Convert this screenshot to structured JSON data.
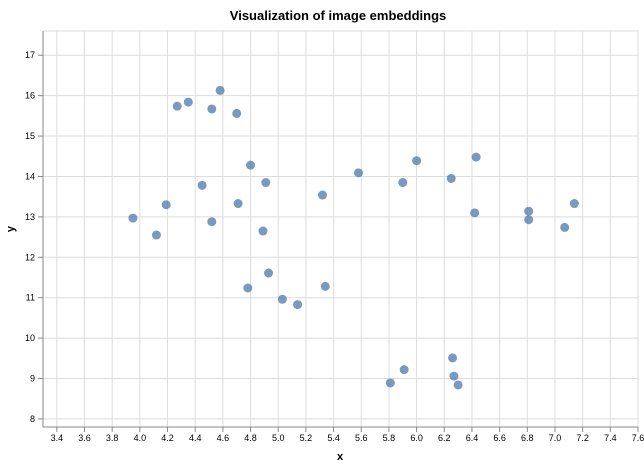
{
  "chart_data": {
    "type": "scatter",
    "title": "Visualization of image embeddings",
    "xlabel": "x",
    "ylabel": "y",
    "xlim": [
      3.3,
      7.6
    ],
    "ylim": [
      7.8,
      17.6
    ],
    "x_ticks": [
      3.4,
      3.6,
      3.8,
      4.0,
      4.2,
      4.4,
      4.6,
      4.8,
      5.0,
      5.2,
      5.4,
      5.6,
      5.8,
      6.0,
      6.2,
      6.4,
      6.6,
      6.8,
      7.0,
      7.2,
      7.4,
      7.6
    ],
    "x_tick_labels": [
      "3.4",
      "3.6",
      "3.8",
      "4.0",
      "4.2",
      "4.4",
      "4.6",
      "4.8",
      "5.0",
      "5.2",
      "5.4",
      "5.6",
      "5.8",
      "6.0",
      "6.2",
      "6.4",
      "6.6",
      "6.8",
      "7.0",
      "7.2",
      "7.4",
      "7.6"
    ],
    "y_ticks": [
      8,
      9,
      10,
      11,
      12,
      13,
      14,
      15,
      16,
      17
    ],
    "y_tick_labels": [
      "8",
      "9",
      "10",
      "11",
      "12",
      "13",
      "14",
      "15",
      "16",
      "17"
    ],
    "grid": true,
    "point_color": "#4c78a8",
    "grid_color": "#dddddd",
    "axis_color": "#888888",
    "points": [
      {
        "x": 3.95,
        "y": 12.97
      },
      {
        "x": 4.12,
        "y": 12.55
      },
      {
        "x": 4.19,
        "y": 13.3
      },
      {
        "x": 4.27,
        "y": 15.74
      },
      {
        "x": 4.35,
        "y": 15.84
      },
      {
        "x": 4.45,
        "y": 13.78
      },
      {
        "x": 4.52,
        "y": 15.67
      },
      {
        "x": 4.52,
        "y": 12.88
      },
      {
        "x": 4.58,
        "y": 16.13
      },
      {
        "x": 4.7,
        "y": 15.56
      },
      {
        "x": 4.71,
        "y": 13.33
      },
      {
        "x": 4.78,
        "y": 11.24
      },
      {
        "x": 4.8,
        "y": 14.28
      },
      {
        "x": 4.89,
        "y": 12.65
      },
      {
        "x": 4.91,
        "y": 13.85
      },
      {
        "x": 4.93,
        "y": 11.61
      },
      {
        "x": 5.03,
        "y": 10.96
      },
      {
        "x": 5.14,
        "y": 10.83
      },
      {
        "x": 5.32,
        "y": 13.54
      },
      {
        "x": 5.34,
        "y": 11.28
      },
      {
        "x": 5.58,
        "y": 14.09
      },
      {
        "x": 5.81,
        "y": 8.89
      },
      {
        "x": 5.9,
        "y": 13.85
      },
      {
        "x": 5.91,
        "y": 9.22
      },
      {
        "x": 6.0,
        "y": 14.39
      },
      {
        "x": 6.25,
        "y": 13.95
      },
      {
        "x": 6.26,
        "y": 9.51
      },
      {
        "x": 6.27,
        "y": 9.06
      },
      {
        "x": 6.3,
        "y": 8.84
      },
      {
        "x": 6.42,
        "y": 13.1
      },
      {
        "x": 6.43,
        "y": 14.48
      },
      {
        "x": 6.81,
        "y": 13.14
      },
      {
        "x": 6.81,
        "y": 12.93
      },
      {
        "x": 7.07,
        "y": 12.74
      },
      {
        "x": 7.14,
        "y": 13.33
      }
    ]
  }
}
